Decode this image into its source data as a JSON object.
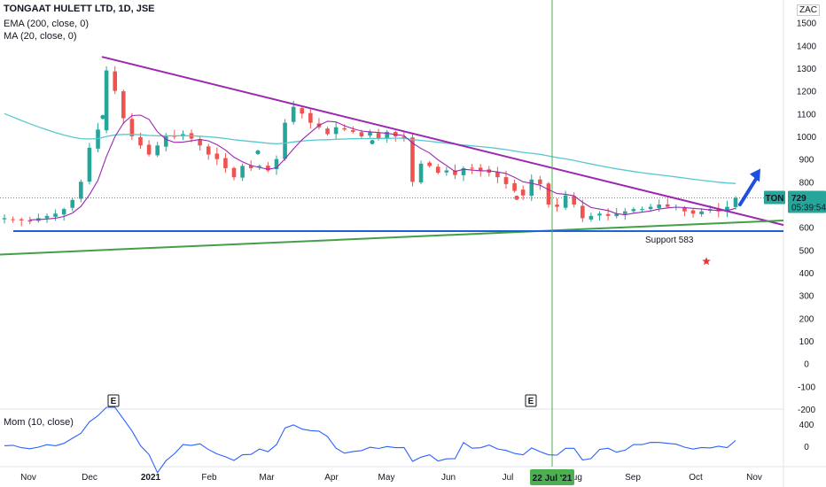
{
  "header": {
    "title": "TONGAAT HULETT LTD, 1D, JSE",
    "ema_label": "EMA (200, close, 0)",
    "ma_label": "MA (20, close, 0)",
    "currency": "ZAC"
  },
  "momentum_label": "Mom (10, close)",
  "annotations": {
    "support_label": "Support 583",
    "earnings_marker": "E",
    "crosshair_date": "22 Jul '21"
  },
  "price_badge": {
    "symbol": "TON",
    "price": "729",
    "countdown": "05:39:54"
  },
  "colors": {
    "up": "#26a69a",
    "down": "#ef5350",
    "ema": "#56c8cf",
    "ma": "#9c27b0",
    "resistance": "#9c27b0",
    "support_rising": "#43a047",
    "support_flat": "#1e63d6",
    "arrow": "#1e4fe0",
    "crosshair": "#4caf50",
    "star": "#e53935",
    "momentum": "#2962ff"
  },
  "chart_data": [
    {
      "type": "candlestick",
      "title": "TONGAAT HULETT LTD, 1D, JSE",
      "ylim": [
        -200,
        1600
      ],
      "y_ticks": [
        1500,
        1400,
        1300,
        1200,
        1100,
        1000,
        900,
        800,
        700,
        600,
        500,
        400,
        300,
        200,
        100,
        0,
        -100,
        -200
      ],
      "x_ticks": [
        "Nov",
        "Dec",
        "2021",
        "Feb",
        "Mar",
        "Apr",
        "May",
        "Jun",
        "Jul",
        "Aug",
        "Sep",
        "Oct",
        "Nov"
      ],
      "close_path": [
        [
          "Nov",
          640
        ],
        [
          "Nov",
          635
        ],
        [
          "Nov",
          630
        ],
        [
          "Nov",
          625
        ],
        [
          "Nov",
          640
        ],
        [
          "Nov",
          650
        ],
        [
          "Nov",
          660
        ],
        [
          "Nov",
          680
        ],
        [
          "Nov",
          720
        ],
        [
          "Nov",
          800
        ],
        [
          "Nov",
          950
        ],
        [
          "Dec",
          1030
        ],
        [
          "Dec",
          1290
        ],
        [
          "Dec",
          1200
        ],
        [
          "Dec",
          1080
        ],
        [
          "Dec",
          1000
        ],
        [
          "Dec",
          960
        ],
        [
          "Dec",
          920
        ],
        [
          "Dec",
          960
        ],
        [
          "Dec",
          1000
        ],
        [
          "Dec",
          1000
        ],
        [
          "2021",
          1010
        ],
        [
          "2021",
          990
        ],
        [
          "2021",
          960
        ],
        [
          "2021",
          920
        ],
        [
          "2021",
          900
        ],
        [
          "Feb",
          860
        ],
        [
          "Feb",
          820
        ],
        [
          "Feb",
          870
        ],
        [
          "Feb",
          860
        ],
        [
          "Feb",
          870
        ],
        [
          "Feb",
          850
        ],
        [
          "Feb",
          900
        ],
        [
          "Mar",
          1060
        ],
        [
          "Mar",
          1130
        ],
        [
          "Mar",
          1100
        ],
        [
          "Mar",
          1060
        ],
        [
          "Mar",
          1040
        ],
        [
          "Mar",
          1010
        ],
        [
          "Mar",
          1040
        ],
        [
          "Apr",
          1030
        ],
        [
          "Apr",
          1020
        ],
        [
          "Apr",
          1000
        ],
        [
          "Apr",
          1020
        ],
        [
          "Apr",
          990
        ],
        [
          "Apr",
          1020
        ],
        [
          "Apr",
          1000
        ],
        [
          "May",
          990
        ],
        [
          "May",
          800
        ],
        [
          "May",
          880
        ],
        [
          "May",
          870
        ],
        [
          "May",
          840
        ],
        [
          "May",
          850
        ],
        [
          "May",
          830
        ],
        [
          "Jun",
          860
        ],
        [
          "Jun",
          860
        ],
        [
          "Jun",
          850
        ],
        [
          "Jun",
          840
        ],
        [
          "Jun",
          820
        ],
        [
          "Jun",
          790
        ],
        [
          "Jun",
          760
        ],
        [
          "Jun",
          740
        ],
        [
          "Jul",
          810
        ],
        [
          "Jul",
          790
        ],
        [
          "Jul",
          700
        ],
        [
          "Jul",
          690
        ],
        [
          "Jul",
          740
        ],
        [
          "Jul",
          700
        ],
        [
          "Aug",
          640
        ],
        [
          "Aug",
          650
        ],
        [
          "Aug",
          660
        ],
        [
          "Aug",
          650
        ],
        [
          "Aug",
          660
        ],
        [
          "Aug",
          670
        ],
        [
          "Sep",
          680
        ],
        [
          "Sep",
          680
        ],
        [
          "Sep",
          690
        ],
        [
          "Sep",
          700
        ],
        [
          "Sep",
          690
        ],
        [
          "Sep",
          690
        ],
        [
          "Sep",
          670
        ],
        [
          "Oct",
          660
        ],
        [
          "Oct",
          670
        ],
        [
          "Oct",
          680
        ],
        [
          "Oct",
          670
        ],
        [
          "Oct",
          690
        ],
        [
          "Oct",
          729
        ]
      ],
      "last_price": 729,
      "support_level": 583
    },
    {
      "type": "line",
      "title": "Mom (10, close)",
      "ylim": [
        -100,
        500
      ],
      "y_ticks": [
        400,
        0
      ]
    }
  ]
}
